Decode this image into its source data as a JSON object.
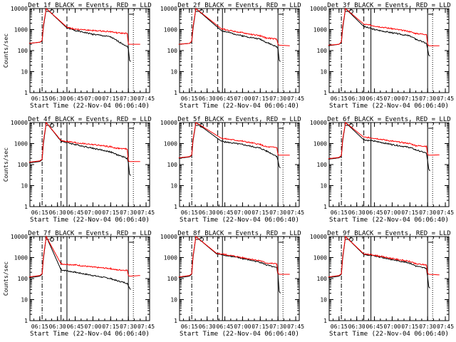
{
  "colors": {
    "events": "#000000",
    "lld": "#ff0000",
    "axis": "#000000",
    "background": "#ffffff"
  },
  "chart_data": [
    {
      "type": "line",
      "title": "Det_1f BLACK = Events, RED = LLD",
      "xlabel": "Start Time (22-Nov-04 06:06:40)",
      "ylabel": "Counts/sec",
      "yscale": "log",
      "ylim": [
        1,
        10000
      ],
      "x_ticks": [
        "06:15",
        "06:30",
        "06:45",
        "07:00",
        "07:15",
        "07:30",
        "07:45"
      ],
      "y_ticks": [
        "1",
        "10",
        "100",
        "1000",
        "10000"
      ],
      "dashdot_x": "06:17",
      "dashed_x": "06:38",
      "solid_x": [],
      "gap_start": "06:20:30",
      "decay_start": "06:38",
      "anomaly_x": "07:30",
      "series": [
        {
          "key": "events",
          "x": [
            "06:06",
            "06:15",
            "06:17",
            "06:18",
            "06:20:30",
            "06:38",
            "06:45",
            "07:00",
            "07:15",
            "07:20",
            "07:29",
            "07:30",
            "07:31",
            "07:32"
          ],
          "values": [
            220,
            250,
            280,
            1200,
            10000,
            1200,
            900,
            600,
            450,
            300,
            160,
            120,
            35,
            30
          ]
        },
        {
          "key": "lld",
          "x": [
            "06:06",
            "06:15",
            "06:17",
            "06:18",
            "06:20:30",
            "06:38",
            "06:45",
            "07:00",
            "07:15",
            "07:20",
            "07:29",
            "07:30",
            "07:31",
            "07:40"
          ],
          "values": [
            220,
            250,
            300,
            1500,
            10000,
            1300,
            1050,
            900,
            800,
            700,
            650,
            200,
            200,
            200
          ]
        }
      ]
    },
    {
      "type": "line",
      "title": "Det_2f BLACK = Events, RED = LLD",
      "xlabel": "Start Time (22-Nov-04 06:06:40)",
      "ylabel": "",
      "yscale": "log",
      "ylim": [
        1,
        10000
      ],
      "x_ticks": [
        "06:15",
        "06:30",
        "06:45",
        "07:00",
        "07:15",
        "07:30",
        "07:45"
      ],
      "y_ticks": [
        "1",
        "10",
        "100",
        "1000",
        "10000"
      ],
      "dashdot_x": "06:17",
      "dashed_x": "06:39",
      "solid_x": [
        "06:43"
      ],
      "gap_start": "06:20:30",
      "decay_start": "06:42",
      "anomaly_x": "07:30",
      "series": [
        {
          "key": "events",
          "x": [
            "06:06",
            "06:15",
            "06:17",
            "06:18",
            "06:20:30",
            "06:42",
            "06:45",
            "07:00",
            "07:15",
            "07:20",
            "07:29",
            "07:30",
            "07:31",
            "07:32"
          ],
          "values": [
            200,
            220,
            260,
            1000,
            10000,
            900,
            800,
            500,
            350,
            250,
            150,
            120,
            35,
            30
          ]
        },
        {
          "key": "lld",
          "x": [
            "06:06",
            "06:15",
            "06:17",
            "06:18",
            "06:20:30",
            "06:42",
            "06:45",
            "07:00",
            "07:15",
            "07:20",
            "07:29",
            "07:30",
            "07:31",
            "07:40"
          ],
          "values": [
            200,
            220,
            280,
            1300,
            10000,
            1100,
            1000,
            700,
            500,
            400,
            350,
            200,
            180,
            170
          ]
        }
      ]
    },
    {
      "type": "line",
      "title": "Det_3f BLACK = Events, RED = LLD",
      "xlabel": "Start Time (22-Nov-04 06:06:40)",
      "ylabel": "",
      "yscale": "log",
      "ylim": [
        1,
        10000
      ],
      "x_ticks": [
        "06:15",
        "06:30",
        "06:45",
        "07:00",
        "07:15",
        "07:30",
        "07:45"
      ],
      "y_ticks": [
        "1",
        "10",
        "100",
        "1000",
        "10000"
      ],
      "dashdot_x": "06:17",
      "dashed_x": "06:36",
      "solid_x": [
        "06:42"
      ],
      "gap_start": "06:20:30",
      "decay_start": "06:36",
      "anomaly_x": "07:30",
      "series": [
        {
          "key": "events",
          "x": [
            "06:06",
            "06:15",
            "06:17",
            "06:18",
            "06:20:30",
            "06:36",
            "06:45",
            "07:00",
            "07:15",
            "07:20",
            "07:29",
            "07:30",
            "07:31",
            "07:32"
          ],
          "values": [
            170,
            200,
            240,
            1000,
            10000,
            1400,
            1000,
            700,
            500,
            350,
            220,
            120,
            60,
            55
          ]
        },
        {
          "key": "lld",
          "x": [
            "06:06",
            "06:15",
            "06:17",
            "06:18",
            "06:20:30",
            "06:36",
            "06:45",
            "07:00",
            "07:15",
            "07:20",
            "07:29",
            "07:30",
            "07:31",
            "07:40"
          ],
          "values": [
            180,
            200,
            260,
            1300,
            10000,
            1800,
            1500,
            1100,
            800,
            650,
            600,
            200,
            170,
            170
          ]
        }
      ]
    },
    {
      "type": "line",
      "title": "Det_4f BLACK = Events, RED = LLD",
      "xlabel": "Start Time (22-Nov-04 06:06:40)",
      "ylabel": "Counts/sec",
      "yscale": "log",
      "ylim": [
        1,
        10000
      ],
      "x_ticks": [
        "06:15",
        "06:30",
        "06:45",
        "07:00",
        "07:15",
        "07:30",
        "07:45"
      ],
      "y_ticks": [
        "1",
        "10",
        "100",
        "1000",
        "10000"
      ],
      "dashdot_x": "06:17",
      "dashed_x": "06:33",
      "solid_x": [
        "06:38"
      ],
      "gap_start": "06:20:30",
      "decay_start": "06:33",
      "anomaly_x": "07:30",
      "series": [
        {
          "key": "events",
          "x": [
            "06:06",
            "06:15",
            "06:17",
            "06:18",
            "06:20:30",
            "06:33",
            "06:45",
            "07:00",
            "07:15",
            "07:20",
            "07:29",
            "07:30",
            "07:31",
            "07:32"
          ],
          "values": [
            120,
            140,
            170,
            900,
            10000,
            1300,
            900,
            600,
            400,
            300,
            200,
            120,
            35,
            30
          ]
        },
        {
          "key": "lld",
          "x": [
            "06:06",
            "06:15",
            "06:17",
            "06:18",
            "06:20:30",
            "06:33",
            "06:45",
            "07:00",
            "07:15",
            "07:20",
            "07:29",
            "07:30",
            "07:31",
            "07:40"
          ],
          "values": [
            130,
            150,
            180,
            1200,
            10000,
            1400,
            1100,
            900,
            700,
            600,
            550,
            150,
            140,
            140
          ]
        }
      ]
    },
    {
      "type": "line",
      "title": "Det_5f BLACK = Events, RED = LLD",
      "xlabel": "Start Time (22-Nov-04 06:06:40)",
      "ylabel": "",
      "yscale": "log",
      "ylim": [
        1,
        10000
      ],
      "x_ticks": [
        "06:15",
        "06:30",
        "06:45",
        "07:00",
        "07:15",
        "07:30",
        "07:45"
      ],
      "y_ticks": [
        "1",
        "10",
        "100",
        "1000",
        "10000"
      ],
      "dashdot_x": "06:17",
      "dashed_x": "06:39",
      "solid_x": [
        "06:43"
      ],
      "gap_start": "06:20:30",
      "decay_start": "06:42",
      "anomaly_x": "07:30",
      "series": [
        {
          "key": "events",
          "x": [
            "06:06",
            "06:15",
            "06:17",
            "06:18",
            "06:20:30",
            "06:42",
            "06:45",
            "07:00",
            "07:15",
            "07:20",
            "07:29",
            "07:30",
            "07:31",
            "07:32"
          ],
          "values": [
            200,
            230,
            270,
            1200,
            10000,
            1300,
            1200,
            900,
            600,
            450,
            250,
            150,
            80,
            70
          ]
        },
        {
          "key": "lld",
          "x": [
            "06:06",
            "06:15",
            "06:17",
            "06:18",
            "06:20:30",
            "06:42",
            "06:45",
            "07:00",
            "07:15",
            "07:20",
            "07:29",
            "07:30",
            "07:31",
            "07:40"
          ],
          "values": [
            210,
            240,
            290,
            1500,
            10000,
            1800,
            1700,
            1300,
            900,
            700,
            650,
            300,
            280,
            280
          ]
        }
      ]
    },
    {
      "type": "line",
      "title": "Det_6f BLACK = Events, RED = LLD",
      "xlabel": "Start Time (22-Nov-04 06:06:40)",
      "ylabel": "",
      "yscale": "log",
      "ylim": [
        1,
        10000
      ],
      "x_ticks": [
        "06:15",
        "06:30",
        "06:45",
        "07:00",
        "07:15",
        "07:30",
        "07:45"
      ],
      "y_ticks": [
        "1",
        "10",
        "100",
        "1000",
        "10000"
      ],
      "dashdot_x": "06:17",
      "dashed_x": "06:36",
      "solid_x": [
        "06:42"
      ],
      "gap_start": "06:20:30",
      "decay_start": "06:36",
      "anomaly_x": "07:30",
      "series": [
        {
          "key": "events",
          "x": [
            "06:06",
            "06:15",
            "06:17",
            "06:18",
            "06:20:30",
            "06:36",
            "06:45",
            "07:00",
            "07:15",
            "07:20",
            "07:29",
            "07:30",
            "07:31",
            "07:32"
          ],
          "values": [
            180,
            210,
            250,
            1200,
            10000,
            1500,
            1300,
            900,
            650,
            500,
            350,
            150,
            60,
            50
          ]
        },
        {
          "key": "lld",
          "x": [
            "06:06",
            "06:15",
            "06:17",
            "06:18",
            "06:20:30",
            "06:36",
            "06:45",
            "07:00",
            "07:15",
            "07:20",
            "07:29",
            "07:30",
            "07:31",
            "07:40"
          ],
          "values": [
            190,
            220,
            270,
            1500,
            10000,
            2000,
            1800,
            1300,
            1000,
            800,
            750,
            300,
            280,
            290
          ]
        }
      ]
    },
    {
      "type": "line",
      "title": "Det_7f BLACK = Events, RED = LLD",
      "xlabel": "Start Time (22-Nov-04 06:06:40)",
      "ylabel": "Counts/sec",
      "yscale": "log",
      "ylim": [
        1,
        10000
      ],
      "x_ticks": [
        "06:15",
        "06:30",
        "06:45",
        "07:00",
        "07:15",
        "07:30",
        "07:45"
      ],
      "y_ticks": [
        "1",
        "10",
        "100",
        "1000",
        "10000"
      ],
      "dashdot_x": "06:17",
      "dashed_x": "06:33",
      "solid_x": [
        "06:38"
      ],
      "gap_start": "06:20:30",
      "decay_start": "06:33",
      "anomaly_x": "07:30",
      "series": [
        {
          "key": "events",
          "x": [
            "06:06",
            "06:15",
            "06:17",
            "06:18",
            "06:20:30",
            "06:33",
            "06:45",
            "07:00",
            "07:15",
            "07:20",
            "07:29",
            "07:30",
            "07:31",
            "07:32"
          ],
          "values": [
            110,
            130,
            160,
            800,
            10000,
            260,
            200,
            140,
            100,
            80,
            60,
            45,
            35,
            30
          ]
        },
        {
          "key": "lld",
          "x": [
            "06:06",
            "06:15",
            "06:17",
            "06:18",
            "06:20:30",
            "06:33",
            "06:45",
            "07:00",
            "07:15",
            "07:20",
            "07:29",
            "07:30",
            "07:31",
            "07:40"
          ],
          "values": [
            120,
            140,
            170,
            1000,
            10000,
            500,
            450,
            350,
            300,
            260,
            250,
            140,
            130,
            140
          ]
        }
      ]
    },
    {
      "type": "line",
      "title": "Det_8f BLACK = Events, RED = LLD",
      "xlabel": "Start Time (22-Nov-04 06:06:40)",
      "ylabel": "",
      "yscale": "log",
      "ylim": [
        1,
        10000
      ],
      "x_ticks": [
        "06:15",
        "06:30",
        "06:45",
        "07:00",
        "07:15",
        "07:30",
        "07:45"
      ],
      "y_ticks": [
        "1",
        "10",
        "100",
        "1000",
        "10000"
      ],
      "dashdot_x": "06:17",
      "dashed_x": "06:39",
      "solid_x": [
        "06:43"
      ],
      "gap_start": "06:20:30",
      "decay_start": "06:38",
      "anomaly_x": "07:30",
      "series": [
        {
          "key": "events",
          "x": [
            "06:06",
            "06:15",
            "06:17",
            "06:18",
            "06:20:30",
            "06:38",
            "06:45",
            "07:00",
            "07:15",
            "07:20",
            "07:29",
            "07:30",
            "07:31",
            "07:32"
          ],
          "values": [
            110,
            130,
            160,
            900,
            10000,
            1500,
            1300,
            900,
            600,
            450,
            320,
            150,
            25,
            20
          ]
        },
        {
          "key": "lld",
          "x": [
            "06:06",
            "06:15",
            "06:17",
            "06:18",
            "06:20:30",
            "06:38",
            "06:45",
            "07:00",
            "07:15",
            "07:20",
            "07:29",
            "07:30",
            "07:31",
            "07:40"
          ],
          "values": [
            120,
            140,
            170,
            1100,
            10000,
            1600,
            1400,
            1000,
            700,
            550,
            500,
            180,
            160,
            160
          ]
        }
      ]
    },
    {
      "type": "line",
      "title": "Det_9f BLACK = Events, RED = LLD",
      "xlabel": "Start Time (22-Nov-04 06:06:40)",
      "ylabel": "",
      "yscale": "log",
      "ylim": [
        1,
        10000
      ],
      "x_ticks": [
        "06:15",
        "06:30",
        "06:45",
        "07:00",
        "07:15",
        "07:30",
        "07:45"
      ],
      "y_ticks": [
        "1",
        "10",
        "100",
        "1000",
        "10000"
      ],
      "dashdot_x": "06:17",
      "dashed_x": "06:36",
      "solid_x": [
        "06:42"
      ],
      "gap_start": "06:20:30",
      "decay_start": "06:36",
      "anomaly_x": "07:30",
      "series": [
        {
          "key": "events",
          "x": [
            "06:06",
            "06:15",
            "06:17",
            "06:18",
            "06:20:30",
            "06:36",
            "06:45",
            "07:00",
            "07:15",
            "07:20",
            "07:29",
            "07:30",
            "07:31",
            "07:32"
          ],
          "values": [
            110,
            130,
            160,
            800,
            10000,
            1400,
            1200,
            800,
            550,
            400,
            300,
            120,
            40,
            35
          ]
        },
        {
          "key": "lld",
          "x": [
            "06:06",
            "06:15",
            "06:17",
            "06:18",
            "06:20:30",
            "06:36",
            "06:45",
            "07:00",
            "07:15",
            "07:20",
            "07:29",
            "07:30",
            "07:31",
            "07:40"
          ],
          "values": [
            120,
            140,
            170,
            1000,
            10000,
            1500,
            1300,
            900,
            650,
            500,
            450,
            180,
            160,
            150
          ]
        }
      ]
    }
  ]
}
